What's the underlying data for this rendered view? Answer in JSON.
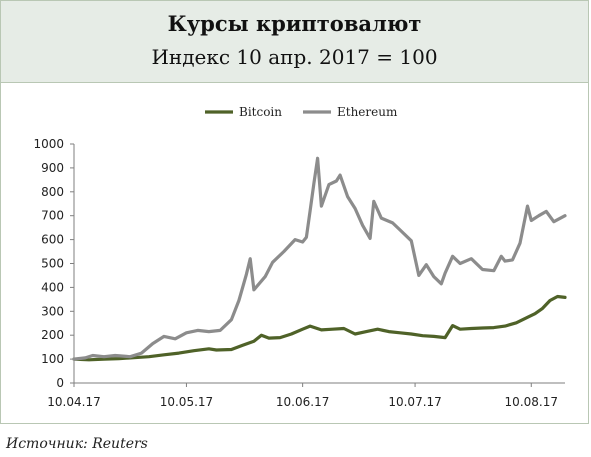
{
  "header": {
    "title": "Курсы криптовалют",
    "subtitle": "Индекс 10 апр. 2017 = 100"
  },
  "source": "Источник: Reuters",
  "colors": {
    "bitcoin": "#4f6228",
    "ethereum": "#8c8c8c",
    "header_bg": "#e6ece6"
  },
  "chart_data": {
    "type": "line",
    "title": "Курсы криптовалют",
    "subtitle": "Индекс 10 апр. 2017 = 100",
    "ylim": [
      0,
      1000
    ],
    "yticks": [
      0,
      100,
      200,
      300,
      400,
      500,
      600,
      700,
      800,
      900,
      1000
    ],
    "ytick_labels": [
      "0",
      "100",
      "200",
      "300",
      "400",
      "500",
      "600",
      "700",
      "800",
      "900",
      "1000"
    ],
    "xlim": [
      "2017-04-10",
      "2017-08-19"
    ],
    "xticks": [
      "2017-04-10",
      "2017-05-10",
      "2017-06-10",
      "2017-07-10",
      "2017-08-10"
    ],
    "xtick_labels": [
      "10.04.17",
      "10.05.17",
      "10.06.17",
      "10.07.17",
      "10.08.17"
    ],
    "legend": "top",
    "grid": false,
    "series": [
      {
        "name": "Bitcoin",
        "color": "#4f6228",
        "points": [
          [
            "2017-04-10",
            100
          ],
          [
            "2017-04-14",
            97
          ],
          [
            "2017-04-18",
            100
          ],
          [
            "2017-04-22",
            102
          ],
          [
            "2017-04-26",
            106
          ],
          [
            "2017-04-30",
            110
          ],
          [
            "2017-05-04",
            118
          ],
          [
            "2017-05-08",
            125
          ],
          [
            "2017-05-12",
            135
          ],
          [
            "2017-05-16",
            143
          ],
          [
            "2017-05-18",
            138
          ],
          [
            "2017-05-22",
            140
          ],
          [
            "2017-05-25",
            158
          ],
          [
            "2017-05-28",
            175
          ],
          [
            "2017-05-30",
            200
          ],
          [
            "2017-06-01",
            188
          ],
          [
            "2017-06-04",
            190
          ],
          [
            "2017-06-07",
            205
          ],
          [
            "2017-06-10",
            225
          ],
          [
            "2017-06-12",
            238
          ],
          [
            "2017-06-15",
            222
          ],
          [
            "2017-06-18",
            225
          ],
          [
            "2017-06-21",
            228
          ],
          [
            "2017-06-24",
            205
          ],
          [
            "2017-06-27",
            215
          ],
          [
            "2017-06-30",
            225
          ],
          [
            "2017-07-03",
            215
          ],
          [
            "2017-07-06",
            210
          ],
          [
            "2017-07-09",
            205
          ],
          [
            "2017-07-12",
            198
          ],
          [
            "2017-07-15",
            195
          ],
          [
            "2017-07-18",
            190
          ],
          [
            "2017-07-20",
            240
          ],
          [
            "2017-07-22",
            225
          ],
          [
            "2017-07-25",
            228
          ],
          [
            "2017-07-28",
            230
          ],
          [
            "2017-07-31",
            232
          ],
          [
            "2017-08-03",
            238
          ],
          [
            "2017-08-06",
            252
          ],
          [
            "2017-08-09",
            275
          ],
          [
            "2017-08-11",
            290
          ],
          [
            "2017-08-13",
            312
          ],
          [
            "2017-08-15",
            345
          ],
          [
            "2017-08-17",
            362
          ],
          [
            "2017-08-19",
            358
          ]
        ]
      },
      {
        "name": "Ethereum",
        "color": "#8c8c8c",
        "points": [
          [
            "2017-04-10",
            100
          ],
          [
            "2017-04-13",
            105
          ],
          [
            "2017-04-15",
            115
          ],
          [
            "2017-04-18",
            110
          ],
          [
            "2017-04-21",
            115
          ],
          [
            "2017-04-25",
            110
          ],
          [
            "2017-04-28",
            125
          ],
          [
            "2017-05-01",
            165
          ],
          [
            "2017-05-04",
            195
          ],
          [
            "2017-05-07",
            185
          ],
          [
            "2017-05-10",
            210
          ],
          [
            "2017-05-13",
            220
          ],
          [
            "2017-05-16",
            215
          ],
          [
            "2017-05-19",
            220
          ],
          [
            "2017-05-22",
            265
          ],
          [
            "2017-05-24",
            345
          ],
          [
            "2017-05-26",
            455
          ],
          [
            "2017-05-27",
            520
          ],
          [
            "2017-05-28",
            390
          ],
          [
            "2017-05-31",
            445
          ],
          [
            "2017-06-02",
            505
          ],
          [
            "2017-06-05",
            550
          ],
          [
            "2017-06-08",
            600
          ],
          [
            "2017-06-10",
            590
          ],
          [
            "2017-06-11",
            610
          ],
          [
            "2017-06-12",
            720
          ],
          [
            "2017-06-13",
            835
          ],
          [
            "2017-06-14",
            940
          ],
          [
            "2017-06-15",
            740
          ],
          [
            "2017-06-17",
            830
          ],
          [
            "2017-06-19",
            845
          ],
          [
            "2017-06-20",
            870
          ],
          [
            "2017-06-22",
            780
          ],
          [
            "2017-06-24",
            730
          ],
          [
            "2017-06-26",
            660
          ],
          [
            "2017-06-28",
            605
          ],
          [
            "2017-06-29",
            760
          ],
          [
            "2017-07-01",
            690
          ],
          [
            "2017-07-04",
            670
          ],
          [
            "2017-07-06",
            640
          ],
          [
            "2017-07-09",
            595
          ],
          [
            "2017-07-11",
            450
          ],
          [
            "2017-07-13",
            495
          ],
          [
            "2017-07-15",
            445
          ],
          [
            "2017-07-17",
            415
          ],
          [
            "2017-07-18",
            460
          ],
          [
            "2017-07-20",
            530
          ],
          [
            "2017-07-22",
            500
          ],
          [
            "2017-07-25",
            520
          ],
          [
            "2017-07-28",
            475
          ],
          [
            "2017-07-31",
            470
          ],
          [
            "2017-08-02",
            530
          ],
          [
            "2017-08-03",
            510
          ],
          [
            "2017-08-05",
            515
          ],
          [
            "2017-08-07",
            585
          ],
          [
            "2017-08-09",
            740
          ],
          [
            "2017-08-10",
            680
          ],
          [
            "2017-08-12",
            700
          ],
          [
            "2017-08-14",
            718
          ],
          [
            "2017-08-16",
            675
          ],
          [
            "2017-08-19",
            700
          ]
        ]
      }
    ]
  }
}
